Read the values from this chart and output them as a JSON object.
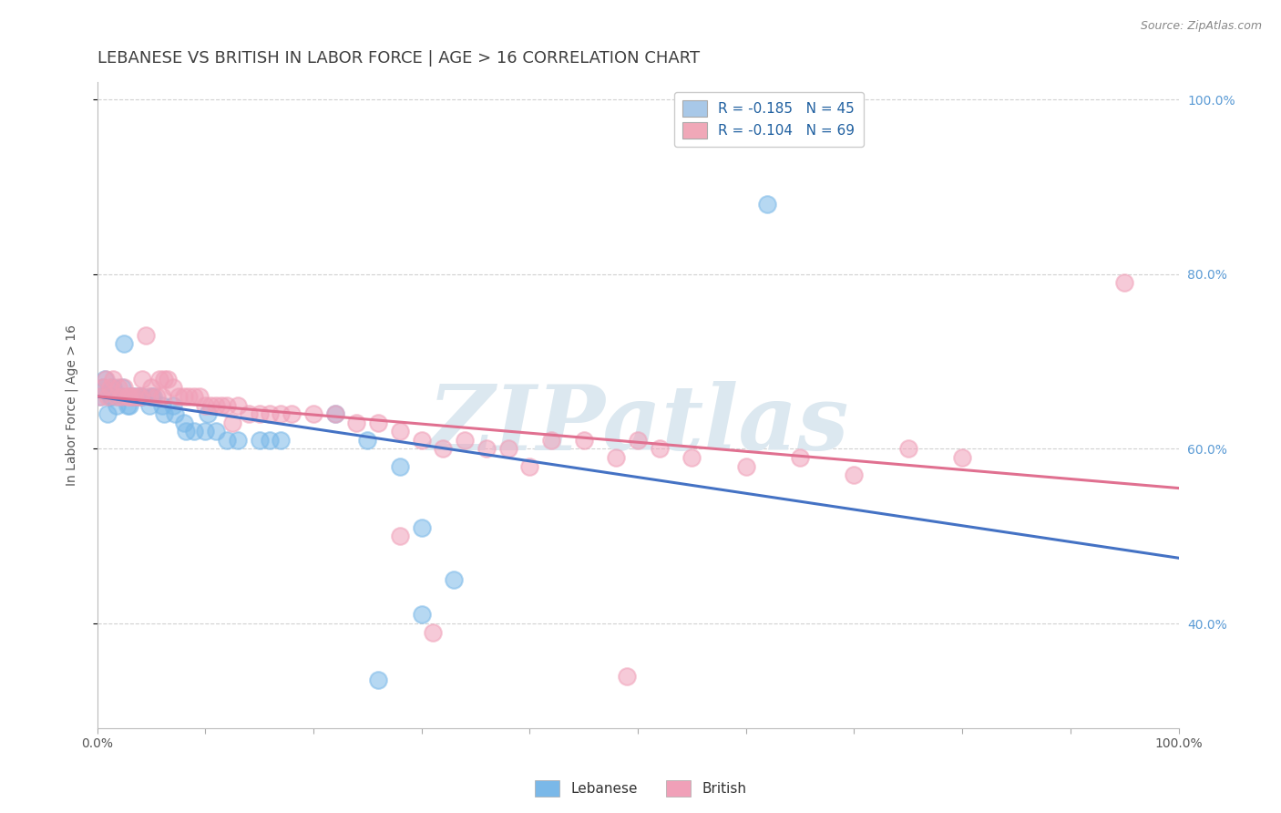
{
  "title": "LEBANESE VS BRITISH IN LABOR FORCE | AGE > 16 CORRELATION CHART",
  "source_text": "Source: ZipAtlas.com",
  "xlabel": "",
  "ylabel": "In Labor Force | Age > 16",
  "xlim": [
    0.0,
    1.0
  ],
  "ylim": [
    0.28,
    1.02
  ],
  "x_ticks": [
    0.0,
    0.1,
    0.2,
    0.3,
    0.4,
    0.5,
    0.6,
    0.7,
    0.8,
    0.9,
    1.0
  ],
  "x_tick_labels": [
    "0.0%",
    "",
    "",
    "",
    "",
    "",
    "",
    "",
    "",
    "",
    "100.0%"
  ],
  "y_ticks": [
    0.4,
    0.6,
    0.8,
    1.0
  ],
  "y_tick_labels": [
    "40.0%",
    "60.0%",
    "80.0%",
    "100.0%"
  ],
  "legend_entries": [
    {
      "label": "R = -0.185   N = 45",
      "color": "#a8c8e8"
    },
    {
      "label": "R = -0.104   N = 69",
      "color": "#f0a8b8"
    }
  ],
  "lebanese_color": "#7ab8e8",
  "british_color": "#f0a0b8",
  "lebanese_line_color": "#4472c4",
  "british_line_color": "#e07090",
  "background_color": "#ffffff",
  "grid_color": "#cccccc",
  "title_color": "#404040",
  "watermark_text": "ZIPatlas",
  "watermark_color": "#dce8f0",
  "leb_trend_x0": 0.0,
  "leb_trend_x1": 1.0,
  "leb_trend_y0": 0.66,
  "leb_trend_y1": 0.475,
  "brit_trend_x0": 0.0,
  "brit_trend_x1": 1.0,
  "brit_trend_y0": 0.66,
  "brit_trend_y1": 0.555,
  "lebanese_x": [
    0.003,
    0.005,
    0.007,
    0.01,
    0.012,
    0.013,
    0.015,
    0.018,
    0.02,
    0.022,
    0.023,
    0.025,
    0.028,
    0.03,
    0.032,
    0.033,
    0.038,
    0.04,
    0.042,
    0.048,
    0.05,
    0.052,
    0.06,
    0.062,
    0.07,
    0.072,
    0.08,
    0.082,
    0.09,
    0.1,
    0.102,
    0.11,
    0.12,
    0.13,
    0.15,
    0.16,
    0.17,
    0.22,
    0.25,
    0.28,
    0.3,
    0.33,
    0.62,
    0.3,
    0.26
  ],
  "lebanese_y": [
    0.66,
    0.67,
    0.68,
    0.64,
    0.66,
    0.66,
    0.67,
    0.65,
    0.66,
    0.66,
    0.67,
    0.72,
    0.65,
    0.65,
    0.66,
    0.66,
    0.66,
    0.66,
    0.66,
    0.65,
    0.66,
    0.66,
    0.65,
    0.64,
    0.65,
    0.64,
    0.63,
    0.62,
    0.62,
    0.62,
    0.64,
    0.62,
    0.61,
    0.61,
    0.61,
    0.61,
    0.61,
    0.64,
    0.61,
    0.58,
    0.51,
    0.45,
    0.88,
    0.41,
    0.335
  ],
  "british_x": [
    0.003,
    0.005,
    0.008,
    0.01,
    0.012,
    0.015,
    0.018,
    0.02,
    0.022,
    0.025,
    0.028,
    0.03,
    0.032,
    0.035,
    0.038,
    0.04,
    0.042,
    0.045,
    0.048,
    0.05,
    0.055,
    0.058,
    0.06,
    0.062,
    0.065,
    0.07,
    0.075,
    0.08,
    0.085,
    0.09,
    0.095,
    0.1,
    0.105,
    0.11,
    0.115,
    0.12,
    0.125,
    0.13,
    0.14,
    0.15,
    0.16,
    0.17,
    0.18,
    0.2,
    0.22,
    0.24,
    0.26,
    0.28,
    0.3,
    0.32,
    0.34,
    0.36,
    0.38,
    0.4,
    0.42,
    0.45,
    0.48,
    0.5,
    0.52,
    0.55,
    0.6,
    0.65,
    0.7,
    0.75,
    0.8,
    0.95,
    0.28,
    0.31,
    0.49
  ],
  "british_y": [
    0.66,
    0.67,
    0.68,
    0.66,
    0.67,
    0.68,
    0.66,
    0.67,
    0.66,
    0.67,
    0.66,
    0.66,
    0.66,
    0.66,
    0.66,
    0.66,
    0.68,
    0.73,
    0.66,
    0.67,
    0.66,
    0.68,
    0.66,
    0.68,
    0.68,
    0.67,
    0.66,
    0.66,
    0.66,
    0.66,
    0.66,
    0.65,
    0.65,
    0.65,
    0.65,
    0.65,
    0.63,
    0.65,
    0.64,
    0.64,
    0.64,
    0.64,
    0.64,
    0.64,
    0.64,
    0.63,
    0.63,
    0.62,
    0.61,
    0.6,
    0.61,
    0.6,
    0.6,
    0.58,
    0.61,
    0.61,
    0.59,
    0.61,
    0.6,
    0.59,
    0.58,
    0.59,
    0.57,
    0.6,
    0.59,
    0.79,
    0.5,
    0.39,
    0.34
  ],
  "title_fontsize": 13,
  "axis_label_fontsize": 10,
  "tick_fontsize": 10,
  "legend_fontsize": 11,
  "source_fontsize": 9
}
